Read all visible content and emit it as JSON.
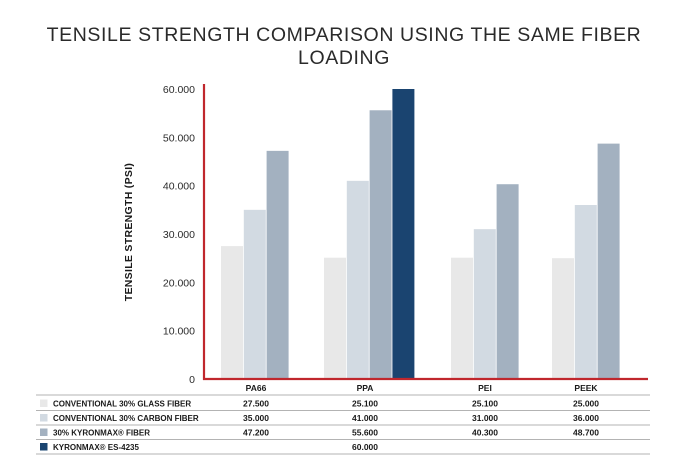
{
  "title": "TENSILE STRENGTH COMPARISON USING THE SAME FIBER LOADING",
  "chart_data": {
    "type": "bar",
    "title": "TENSILE STRENGTH COMPARISON USING THE SAME FIBER LOADING",
    "xlabel": "",
    "ylabel": "TENSILE STRENGTH (PSI)",
    "ylim": [
      0,
      60000
    ],
    "yticks": [
      0,
      10000,
      20000,
      30000,
      40000,
      50000,
      60000
    ],
    "ytick_labels": [
      "0",
      "10.000",
      "20.000",
      "30.000",
      "40.000",
      "50.000",
      "60.000"
    ],
    "categories": [
      "PA66",
      "PPA",
      "PEI",
      "PEEK"
    ],
    "grid": false,
    "legend": "table-below",
    "series": [
      {
        "name": "CONVENTIONAL 30% GLASS FIBER",
        "color": "#e8e8e8",
        "values": [
          27500,
          25100,
          25100,
          25000
        ],
        "labels": [
          "27.500",
          "25.100",
          "25.100",
          "25.000"
        ]
      },
      {
        "name": "CONVENTIONAL 30% CARBON FIBER",
        "color": "#d2dae2",
        "values": [
          35000,
          41000,
          31000,
          36000
        ],
        "labels": [
          "35.000",
          "41.000",
          "31.000",
          "36.000"
        ]
      },
      {
        "name": "30% KYRONMAX® FIBER",
        "color": "#a3b1c0",
        "values": [
          47200,
          55600,
          40300,
          48700
        ],
        "labels": [
          "47.200",
          "55.600",
          "40.300",
          "48.700"
        ]
      },
      {
        "name": "KYRONMAX® ES-4235",
        "color": "#1a4470",
        "values": [
          null,
          60000,
          null,
          null
        ],
        "labels": [
          "",
          "60.000",
          "",
          ""
        ]
      }
    ],
    "axis_color": "#c0272d"
  }
}
